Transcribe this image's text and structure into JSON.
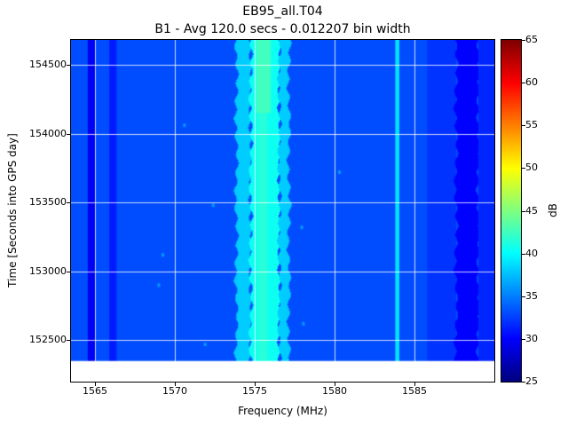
{
  "chart_data": {
    "type": "heatmap",
    "title": "EB95_all.T04",
    "subtitle": "B1 - Avg 120.0 secs - 0.012207 bin width",
    "xlabel": "Frequency (MHz)",
    "ylabel": "Time [Seconds into GPS day]",
    "x_range": [
      1563.5,
      1590.0
    ],
    "y_range": [
      152200,
      154680
    ],
    "data_y_min": 152350,
    "x_ticks": [
      1565,
      1570,
      1575,
      1580,
      1585
    ],
    "y_ticks": [
      152500,
      153000,
      153500,
      154000,
      154500
    ],
    "grid": true,
    "grid_color": "#ffffff",
    "background_value_db": 33,
    "bands": [
      {
        "x": [
          1564.55,
          1565.05
        ],
        "value": 29.5
      },
      {
        "x": [
          1565.9,
          1566.35
        ],
        "value": 31
      },
      {
        "x": [
          1573.85,
          1574.75
        ],
        "value": 38,
        "jitter": true
      },
      {
        "x": [
          1574.75,
          1576.55
        ],
        "value": 40.5,
        "jitter": true
      },
      {
        "x": [
          1576.55,
          1577.15
        ],
        "value": 38,
        "jitter": true
      },
      {
        "x": [
          1583.8,
          1584.05
        ],
        "value": 39
      },
      {
        "x": [
          1585.8,
          1587.6
        ],
        "value": 32
      },
      {
        "x": [
          1587.6,
          1589.0
        ],
        "value": 30,
        "jitter": true
      },
      {
        "x": [
          1589.0,
          1590.0
        ],
        "value": 31.5
      }
    ],
    "patches": [
      {
        "x": [
          1575.2,
          1575.8
        ],
        "y": [
          152350,
          154680
        ],
        "value": 41.5
      },
      {
        "x": [
          1575.1,
          1576.0
        ],
        "y": [
          154150,
          154680
        ],
        "value": 42.5
      }
    ],
    "speckles": {
      "value": 36,
      "points": [
        {
          "x": 1569.0,
          "y": 152900
        },
        {
          "x": 1569.25,
          "y": 153120
        },
        {
          "x": 1570.6,
          "y": 154060
        },
        {
          "x": 1571.9,
          "y": 152470
        },
        {
          "x": 1572.4,
          "y": 153480
        },
        {
          "x": 1577.95,
          "y": 153320
        },
        {
          "x": 1578.05,
          "y": 152620
        },
        {
          "x": 1580.3,
          "y": 153720
        }
      ]
    },
    "colorbar": {
      "label": "dB",
      "min": 25,
      "max": 65,
      "ticks": [
        25,
        30,
        35,
        40,
        45,
        50,
        55,
        60,
        65
      ],
      "colormap": "jet"
    }
  }
}
